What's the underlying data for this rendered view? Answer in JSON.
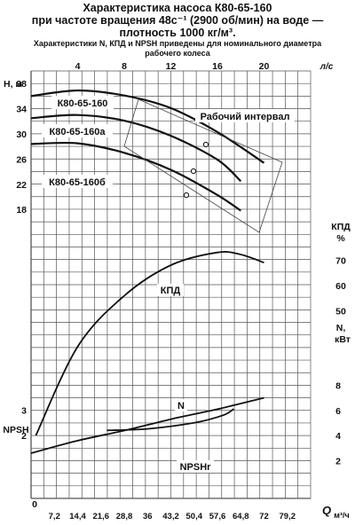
{
  "title_lines": [
    "Характеристика насоса К80-65-160",
    "при частоте вращения 48с⁻¹ (2900 об/мин) на воде —",
    "плотность 1000 кг/м³."
  ],
  "subtitle_lines": [
    "Характеристики N, КПД и NPSH приведены для номинального диаметра",
    "рабочего колеса"
  ],
  "chart_data": {
    "type": "line",
    "x_axis_bottom": {
      "label": "Q",
      "unit": "м³/ч",
      "ticks": [
        "0",
        "7,2",
        "14,4",
        "21,6",
        "28,8",
        "36",
        "43,2",
        "50,4",
        "57,6",
        "64,8",
        "72",
        "79,2"
      ]
    },
    "x_axis_top": {
      "unit": "л/с",
      "ticks": [
        "4",
        "8",
        "12",
        "16",
        "20"
      ],
      "range": [
        0,
        24
      ]
    },
    "axes": {
      "H": {
        "label": "H, м",
        "ticks": [
          "18",
          "22",
          "26",
          "30",
          "34",
          "38"
        ]
      },
      "KPD": {
        "label": "КПД %",
        "ticks": [
          "50",
          "60",
          "70"
        ]
      },
      "N": {
        "label": "N, кВт",
        "ticks": [
          "2",
          "4",
          "6",
          "8"
        ]
      },
      "NPSH": {
        "label": "NPSH",
        "ticks": [
          "2",
          "3"
        ]
      }
    },
    "series": [
      {
        "name": "К80-65-160",
        "axis": "H",
        "x": [
          0,
          4,
          8,
          12,
          16,
          20
        ],
        "y": [
          36,
          36.9,
          36.1,
          34.1,
          30.3,
          25.4
        ]
      },
      {
        "name": "К80-65-160а",
        "axis": "H",
        "x": [
          0,
          4,
          8,
          12,
          16,
          18
        ],
        "y": [
          32.5,
          33,
          32.1,
          29.7,
          25.9,
          22.5
        ]
      },
      {
        "name": "К80-65-160б",
        "axis": "H",
        "x": [
          0,
          4,
          8,
          12,
          16,
          18
        ],
        "y": [
          28.4,
          28.5,
          27,
          24.3,
          20.3,
          17.8
        ]
      },
      {
        "name": "КПД",
        "axis": "KPD",
        "x": [
          0.4,
          4,
          8,
          12,
          16,
          18,
          20
        ],
        "y": [
          1,
          36,
          56,
          68,
          73,
          72.2,
          69
        ]
      },
      {
        "name": "N",
        "axis": "N",
        "x": [
          0,
          4,
          8,
          12,
          16,
          20
        ],
        "y": [
          2.6,
          3.6,
          4.4,
          5.3,
          6.1,
          7
        ]
      },
      {
        "name": "NPSHr",
        "axis": "NPSH",
        "x": [
          6.5,
          10,
          14,
          16.5,
          17.4
        ],
        "y": [
          2.2,
          2.26,
          2.5,
          2.8,
          3.05
        ]
      }
    ],
    "annotations": [
      {
        "text": "Рабочий интервал"
      }
    ]
  }
}
